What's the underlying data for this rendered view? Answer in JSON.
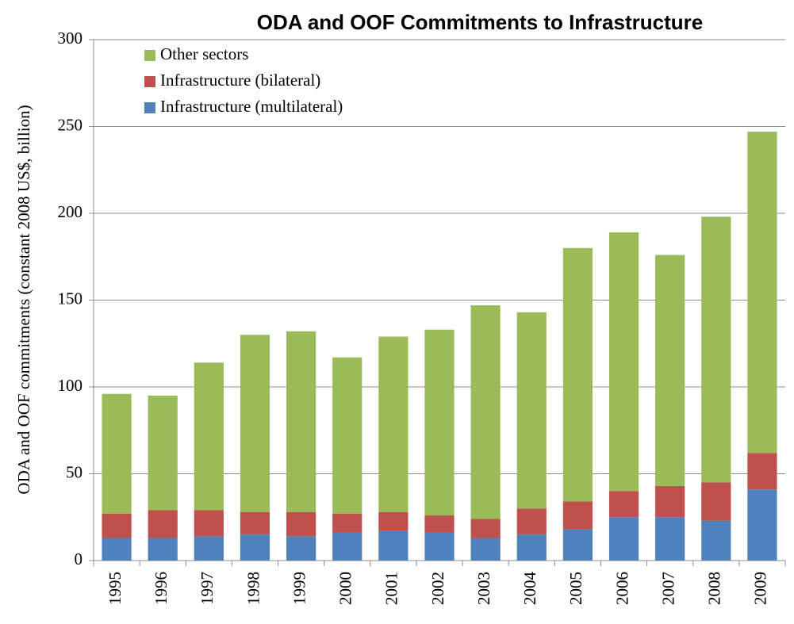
{
  "chart_data": {
    "type": "stacked_bar",
    "title": "ODA and OOF Commitments to Infrastructure",
    "y_label": "ODA and OOF commitments (constant 2008 US$, billion)",
    "categories": [
      "1995",
      "1996",
      "1997",
      "1998",
      "1999",
      "2000",
      "2001",
      "2002",
      "2003",
      "2004",
      "2005",
      "2006",
      "2007",
      "2008",
      "2009"
    ],
    "series": [
      {
        "name": "Infrastructure (multilateral)",
        "color": "#4f81bd",
        "values": [
          13,
          13,
          14,
          15,
          14,
          16,
          17,
          16,
          13,
          15,
          18,
          25,
          25,
          23,
          41
        ]
      },
      {
        "name": "Infrastructure (bilateral)",
        "color": "#c0504d",
        "values": [
          14,
          16,
          15,
          13,
          14,
          11,
          11,
          10,
          11,
          15,
          16,
          15,
          18,
          22,
          21
        ]
      },
      {
        "name": "Other sectors",
        "color": "#9bbb59",
        "values": [
          69,
          66,
          85,
          102,
          104,
          90,
          101,
          107,
          123,
          113,
          146,
          149,
          133,
          153,
          185
        ]
      }
    ],
    "ylim": [
      0,
      300
    ],
    "yticks": [
      0,
      50,
      100,
      150,
      200,
      250,
      300
    ],
    "grid": true,
    "legend": "top-left"
  }
}
